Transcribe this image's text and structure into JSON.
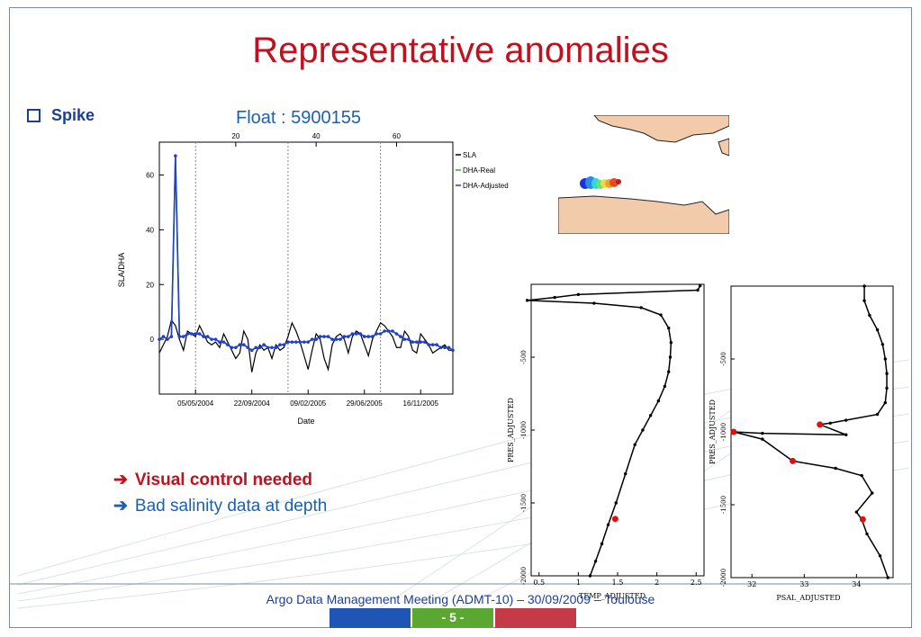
{
  "slide": {
    "title": "Representative anomalies",
    "bullet": "Spike",
    "float_label": "Float : 5900155",
    "notes": [
      "Visual control needed",
      "Bad salinity data at depth"
    ],
    "footer": "Argo Data Management Meeting (ADMT-10) – 30/09/2009 – Toulouse",
    "page_number": "- 5 -",
    "arrow_glyph": "➔",
    "colors": {
      "title": "#c0111f",
      "text": "#1d3f93",
      "note_blue": "#1d5fb0",
      "page_bar_blue": "#1f55b5",
      "page_bar_green": "#5aa832",
      "page_bar_red": "#c43a47"
    }
  },
  "chart_data": [
    {
      "type": "line",
      "ylabel": "SLA/DHA",
      "xlabel": "Date",
      "x_index_ticks": [
        "20",
        "40",
        "60"
      ],
      "x_index_tick_values": [
        20,
        40,
        60
      ],
      "x_index_range": [
        1,
        74
      ],
      "ylim": [
        -20,
        72
      ],
      "y_ticks": [
        "0",
        "20",
        "40",
        "60"
      ],
      "y_tick_values": [
        0,
        20,
        40,
        60
      ],
      "x_date_ticks": [
        "05/05/2004",
        "22/09/2004",
        "09/02/2005",
        "29/06/2005",
        "16/11/2005"
      ],
      "x_date_tick_positions": [
        10,
        24,
        38,
        52,
        66
      ],
      "vlines_at_index": [
        10,
        33,
        56
      ],
      "legend_position": "top-right, outside plot",
      "series": [
        {
          "name": "SLA",
          "color": "#000000",
          "values": [
            -5,
            -2,
            1,
            7,
            5,
            0,
            -4,
            3,
            2,
            1,
            5,
            2,
            -1,
            -2,
            -1,
            -3,
            2,
            -1,
            -4,
            -7,
            -5,
            3,
            0,
            -12,
            -5,
            -2,
            -4,
            -3,
            -7,
            -2,
            -4,
            -3,
            1,
            6,
            3,
            -1,
            -6,
            -11,
            -4,
            2,
            0,
            -7,
            -11,
            -2,
            1,
            2,
            0,
            -5,
            1,
            3,
            2,
            -2,
            -6,
            0,
            3,
            6,
            5,
            3,
            1,
            -3,
            -3,
            3,
            1,
            -4,
            -5,
            2,
            0,
            -2,
            -5,
            -4,
            -3,
            -2,
            -4,
            -4
          ]
        },
        {
          "name": "DHA-Real",
          "color": "#2eaa2e",
          "values": [
            0,
            1,
            0,
            1,
            67,
            1,
            1,
            2,
            2,
            2,
            2,
            1,
            1,
            0,
            0,
            -1,
            -1,
            -2,
            -3,
            -3,
            -2,
            -2,
            -3,
            -4,
            -3,
            -3,
            -2,
            -3,
            -3,
            -3,
            -2,
            -2,
            -1,
            -1,
            -1,
            -1,
            -1,
            -1,
            0,
            0,
            1,
            1,
            1,
            0,
            0,
            0,
            1,
            1,
            2,
            2,
            2,
            1,
            1,
            1,
            2,
            2,
            3,
            3,
            3,
            2,
            1,
            0,
            0,
            -1,
            -1,
            -1,
            -1,
            -2,
            -2,
            -2,
            -3,
            -3,
            -3,
            -4
          ]
        },
        {
          "name": "DHA-Adjusted",
          "color": "#1f3fd6",
          "values": [
            0,
            1,
            0,
            1,
            67,
            1,
            1,
            2,
            2,
            2,
            2,
            1,
            1,
            0,
            0,
            -1,
            -1,
            -2,
            -3,
            -3,
            -2,
            -2,
            -3,
            -4,
            -3,
            -3,
            -2,
            -3,
            -3,
            -3,
            -2,
            -2,
            -1,
            -1,
            -1,
            -1,
            -1,
            -1,
            0,
            0,
            1,
            1,
            1,
            0,
            0,
            0,
            1,
            1,
            2,
            2,
            2,
            1,
            1,
            1,
            2,
            2,
            3,
            3,
            3,
            2,
            1,
            0,
            0,
            -1,
            -1,
            -1,
            -1,
            -2,
            -2,
            -2,
            -3,
            -3,
            -3,
            -4
          ]
        }
      ]
    },
    {
      "type": "line",
      "xlabel": "TEMP_ADJUSTED",
      "ylabel": "PRES_ADJUSTED",
      "xlim": [
        0.4,
        2.6
      ],
      "ylim": [
        -2000,
        0
      ],
      "x_ticks": [
        "0.5",
        "1",
        "1.5",
        "2",
        "2.5"
      ],
      "x_tick_values": [
        0.5,
        1,
        1.5,
        2,
        2.5
      ],
      "y_ticks": [
        "-500",
        "-1000",
        "-1500",
        "-2000"
      ],
      "y_tick_values": [
        -500,
        -1000,
        -1500,
        -2000
      ],
      "series": [
        {
          "name": "",
          "color": "#000000",
          "x": [
            2.55,
            2.52,
            1.0,
            0.7,
            0.35,
            1.2,
            1.8,
            2.05,
            2.15,
            2.18,
            2.17,
            2.15,
            2.1,
            2.02,
            1.92,
            1.82,
            1.72,
            1.6,
            1.48,
            1.38,
            1.3,
            1.22,
            1.15
          ],
          "y": [
            -10,
            -40,
            -70,
            -90,
            -110,
            -130,
            -160,
            -210,
            -300,
            -400,
            -500,
            -600,
            -700,
            -800,
            -900,
            -1000,
            -1100,
            -1300,
            -1500,
            -1650,
            -1780,
            -1900,
            -2000
          ]
        }
      ],
      "flagged_points": [
        {
          "x": 1.47,
          "y": -1610
        }
      ]
    },
    {
      "type": "line",
      "xlabel": "PSAL_ADJUSTED",
      "ylabel": "PRES_ADJUSTED",
      "xlim": [
        31.6,
        34.7
      ],
      "ylim": [
        -2000,
        0
      ],
      "x_ticks": [
        "32",
        "33",
        "34"
      ],
      "x_tick_values": [
        32,
        33,
        34
      ],
      "y_ticks": [
        "-500",
        "-1000",
        "-1500",
        "-2000"
      ],
      "y_tick_values": [
        -500,
        -1000,
        -1500,
        -2000
      ],
      "series": [
        {
          "name": "",
          "color": "#000000",
          "x": [
            34.15,
            34.15,
            34.25,
            34.4,
            34.5,
            34.55,
            34.58,
            34.58,
            34.55,
            34.4,
            33.8,
            33.5,
            33.3,
            33.8,
            32.2,
            31.65,
            32.2,
            32.78,
            33.6,
            34.1,
            34.3,
            34.0,
            34.1,
            34.2,
            34.45,
            34.6
          ],
          "y": [
            0,
            -100,
            -200,
            -300,
            -400,
            -500,
            -600,
            -700,
            -800,
            -880,
            -920,
            -940,
            -950,
            -1020,
            -1010,
            -1000,
            -1050,
            -1200,
            -1250,
            -1300,
            -1420,
            -1550,
            -1600,
            -1700,
            -1850,
            -2000
          ]
        }
      ],
      "flagged_points": [
        {
          "x": 33.3,
          "y": -950
        },
        {
          "x": 31.65,
          "y": -1000
        },
        {
          "x": 32.78,
          "y": -1200
        },
        {
          "x": 34.12,
          "y": -1600
        }
      ]
    }
  ]
}
